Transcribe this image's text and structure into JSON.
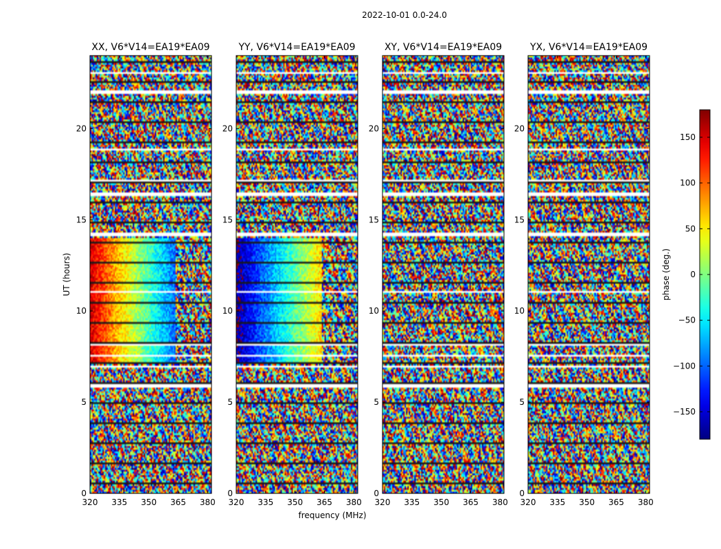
{
  "chart_data": {
    "type": "heatmap",
    "suptitle": "2022-10-01 0.0-24.0",
    "xlabel": "frequency (MHz)",
    "ylabel": "UT (hours)",
    "xlim": [
      320,
      382
    ],
    "ylim": [
      0,
      24
    ],
    "xticks": [
      "320",
      "335",
      "350",
      "365",
      "380"
    ],
    "yticks": [
      "0",
      "5",
      "10",
      "15",
      "20"
    ],
    "panels": [
      {
        "title": "XX, V6*V14=EA19*EA09",
        "corr": "XX"
      },
      {
        "title": "YY, V6*V14=EA19*EA09",
        "corr": "YY"
      },
      {
        "title": "XY, V6*V14=EA19*EA09",
        "corr": "XY"
      },
      {
        "title": "YX, V6*V14=EA19*EA09",
        "corr": "YX"
      }
    ],
    "colorbar": {
      "label": "phase (deg.)",
      "vmin": -180,
      "vmax": 180,
      "ticks": [
        "150",
        "100",
        "50",
        "0",
        "−50",
        "−100",
        "−150"
      ],
      "colormap": "jet"
    },
    "flagged_bands_hours": [
      [
        0.35,
        0.42
      ],
      [
        1.45,
        1.55
      ],
      [
        2.3,
        2.35
      ],
      [
        3.35,
        3.45
      ],
      [
        4.5,
        4.55
      ],
      [
        5.85,
        5.95
      ],
      [
        6.9,
        6.95
      ],
      [
        7.55,
        7.62
      ],
      [
        8.1,
        8.15
      ],
      [
        8.55,
        8.6
      ],
      [
        11.05,
        11.1
      ],
      [
        13.65,
        13.7
      ],
      [
        14.05,
        14.25
      ],
      [
        15.55,
        15.6
      ],
      [
        16.35,
        16.45
      ],
      [
        17.05,
        17.2
      ],
      [
        18.8,
        18.9
      ],
      [
        21.95,
        22.05
      ],
      [
        23.05,
        23.1
      ]
    ],
    "coherent_phase_blocks": [
      {
        "corr": "XX",
        "hours": [
          7.2,
          14.0
        ],
        "freq_MHz": [
          320,
          364
        ],
        "phase_deg": [
          150,
          -100
        ]
      },
      {
        "corr": "YY",
        "hours": [
          7.2,
          14.0
        ],
        "freq_MHz": [
          320,
          364
        ],
        "phase_deg": [
          -170,
          60
        ]
      }
    ]
  }
}
